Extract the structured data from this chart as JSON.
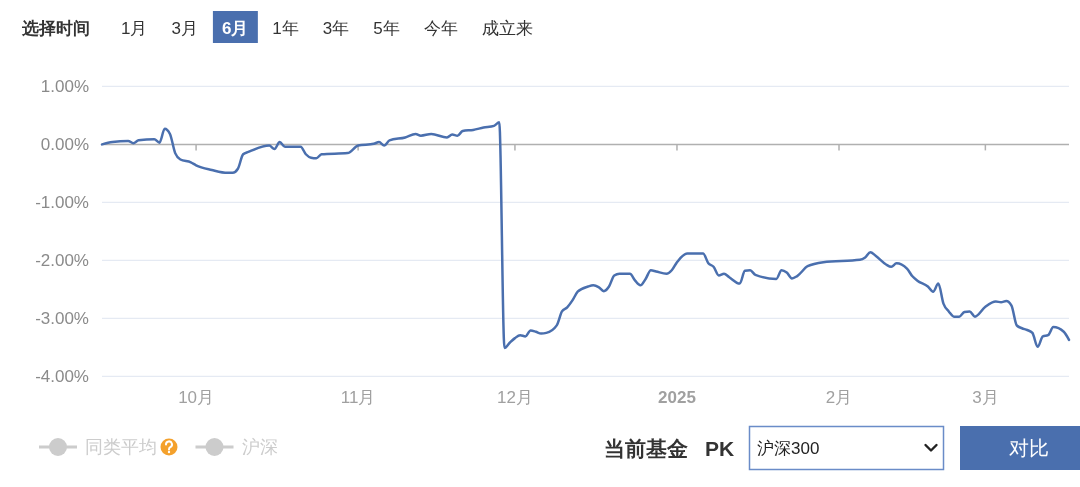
{
  "chart_data": {
    "type": "line",
    "x": [
      "2024-09-13",
      "2024-09-15",
      "2024-09-18",
      "2024-09-19",
      "2024-09-20",
      "2024-09-23",
      "2024-09-24",
      "2024-09-25",
      "2024-09-26",
      "2024-09-27",
      "2024-09-28",
      "2024-09-30",
      "2024-10-01",
      "2024-10-04",
      "2024-10-07",
      "2024-10-08",
      "2024-10-09",
      "2024-10-10",
      "2024-10-11",
      "2024-10-15",
      "2024-10-16",
      "2024-10-17",
      "2024-10-18",
      "2024-10-21",
      "2024-10-22",
      "2024-10-23",
      "2024-10-24",
      "2024-10-25",
      "2024-10-30",
      "2024-11-01",
      "2024-11-04",
      "2024-11-05",
      "2024-11-06",
      "2024-11-07",
      "2024-11-10",
      "2024-11-12",
      "2024-11-13",
      "2024-11-15",
      "2024-11-18",
      "2024-11-19",
      "2024-11-20",
      "2024-11-21",
      "2024-11-23",
      "2024-11-25",
      "2024-11-27",
      "2024-11-28",
      "2024-11-29",
      "2024-11-30",
      "2024-12-01",
      "2024-12-02",
      "2024-12-03",
      "2024-12-04",
      "2024-12-05",
      "2024-12-06",
      "2024-12-07",
      "2024-12-09",
      "2024-12-10",
      "2024-12-11",
      "2024-12-12",
      "2024-12-13",
      "2024-12-15",
      "2024-12-16",
      "2024-12-17",
      "2024-12-18",
      "2024-12-19",
      "2024-12-20",
      "2024-12-21",
      "2024-12-23",
      "2024-12-24",
      "2024-12-25",
      "2024-12-26",
      "2024-12-27",
      "2024-12-28",
      "2024-12-30",
      "2024-12-31",
      "2025-01-01",
      "2025-01-03",
      "2025-01-06",
      "2025-01-07",
      "2025-01-08",
      "2025-01-09",
      "2025-01-10",
      "2025-01-11",
      "2025-01-13",
      "2025-01-14",
      "2025-01-15",
      "2025-01-16",
      "2025-01-20",
      "2025-01-21",
      "2025-01-22",
      "2025-01-23",
      "2025-01-24",
      "2025-01-26",
      "2025-01-29",
      "2025-02-05",
      "2025-02-06",
      "2025-02-07",
      "2025-02-08",
      "2025-02-10",
      "2025-02-11",
      "2025-02-12",
      "2025-02-14",
      "2025-02-15",
      "2025-02-16",
      "2025-02-18",
      "2025-02-19",
      "2025-02-20",
      "2025-02-21",
      "2025-02-22",
      "2025-02-23",
      "2025-02-24",
      "2025-02-25",
      "2025-02-26",
      "2025-02-27",
      "2025-03-01",
      "2025-03-03",
      "2025-03-04",
      "2025-03-05",
      "2025-03-06",
      "2025-03-07",
      "2025-03-08",
      "2025-03-09",
      "2025-03-10",
      "2025-03-11",
      "2025-03-12",
      "2025-03-13",
      "2025-03-14",
      "2025-03-16",
      "2025-03-17"
    ],
    "series": [
      {
        "color": "#4a6fae",
        "values": [
          0.0,
          0.04,
          0.06,
          0.02,
          0.07,
          0.09,
          0.03,
          0.27,
          0.18,
          -0.15,
          -0.26,
          -0.31,
          -0.36,
          -0.44,
          -0.49,
          -0.49,
          -0.42,
          -0.17,
          -0.13,
          -0.02,
          -0.08,
          0.04,
          -0.04,
          -0.04,
          -0.17,
          -0.23,
          -0.24,
          -0.17,
          -0.15,
          -0.02,
          0.01,
          0.04,
          -0.02,
          0.07,
          0.12,
          0.18,
          0.15,
          0.18,
          0.12,
          0.17,
          0.15,
          0.23,
          0.25,
          0.29,
          0.32,
          0.38,
          -3.51,
          -3.42,
          -3.34,
          -3.29,
          -3.31,
          -3.21,
          -3.23,
          -3.26,
          -3.25,
          -3.12,
          -2.88,
          -2.81,
          -2.69,
          -2.54,
          -2.45,
          -2.43,
          -2.46,
          -2.53,
          -2.45,
          -2.26,
          -2.23,
          -2.23,
          -2.35,
          -2.43,
          -2.32,
          -2.17,
          -2.19,
          -2.23,
          -2.17,
          -2.03,
          -1.88,
          -1.88,
          -2.05,
          -2.11,
          -2.26,
          -2.23,
          -2.29,
          -2.4,
          -2.18,
          -2.17,
          -2.25,
          -2.32,
          -2.17,
          -2.21,
          -2.31,
          -2.27,
          -2.1,
          -2.03,
          -1.99,
          -1.95,
          -1.86,
          -1.92,
          -2.07,
          -2.11,
          -2.05,
          -2.14,
          -2.27,
          -2.35,
          -2.45,
          -2.54,
          -2.4,
          -2.75,
          -2.88,
          -2.97,
          -2.97,
          -2.89,
          -2.88,
          -2.97,
          -2.8,
          -2.71,
          -2.72,
          -2.7,
          -2.78,
          -3.12,
          -3.17,
          -3.2,
          -3.25,
          -3.49,
          -3.31,
          -3.29,
          -3.15,
          -3.23,
          -3.37
        ]
      },
      {
        "name": "同类平均",
        "color": "#cccccc",
        "values": [
          null,
          null,
          null,
          null,
          null,
          null,
          null,
          null,
          null,
          null,
          null,
          null,
          null,
          null,
          null,
          null,
          null,
          null,
          null,
          null,
          null,
          null,
          null,
          null,
          null,
          null,
          null,
          null,
          null,
          null,
          null,
          null,
          null,
          null,
          null,
          null,
          null,
          null,
          null,
          null,
          null,
          null,
          null,
          null,
          null,
          null,
          null,
          null,
          null,
          null,
          null,
          null,
          null,
          null,
          null,
          null,
          null,
          null,
          null,
          null,
          null,
          null,
          null,
          null,
          null,
          null,
          null,
          null,
          null,
          null,
          null,
          null,
          null,
          null,
          null,
          null,
          null,
          null,
          null,
          null,
          null,
          null,
          null,
          null,
          null,
          null,
          null,
          null,
          null,
          null,
          null,
          null,
          null,
          null,
          null,
          null,
          null,
          null,
          null,
          null,
          null,
          null,
          null,
          null,
          null,
          null,
          null,
          null,
          null,
          null,
          null,
          null,
          null,
          null,
          null,
          null,
          null,
          null,
          null,
          null,
          null,
          null,
          null,
          null,
          null,
          null,
          null,
          null,
          null
        ]
      },
      {
        "name": "沪深",
        "color": "#cccccc",
        "values": [
          null,
          null,
          null,
          null,
          null,
          null,
          null,
          null,
          null,
          null,
          null,
          null,
          null,
          null,
          null,
          null,
          null,
          null,
          null,
          null,
          null,
          null,
          null,
          null,
          null,
          null,
          null,
          null,
          null,
          null,
          null,
          null,
          null,
          null,
          null,
          null,
          null,
          null,
          null,
          null,
          null,
          null,
          null,
          null,
          null,
          null,
          null,
          null,
          null,
          null,
          null,
          null,
          null,
          null,
          null,
          null,
          null,
          null,
          null,
          null,
          null,
          null,
          null,
          null,
          null,
          null,
          null,
          null,
          null,
          null,
          null,
          null,
          null,
          null,
          null,
          null,
          null,
          null,
          null,
          null,
          null,
          null,
          null,
          null,
          null,
          null,
          null,
          null,
          null,
          null,
          null,
          null,
          null,
          null,
          null,
          null,
          null,
          null,
          null,
          null,
          null,
          null,
          null,
          null,
          null,
          null,
          null,
          null,
          null,
          null,
          null,
          null,
          null,
          null,
          null,
          null,
          null,
          null,
          null,
          null,
          null,
          null,
          null,
          null,
          null,
          null,
          null,
          null,
          null
        ]
      }
    ],
    "xlim": [
      "2024-09-13",
      "2025-03-17"
    ],
    "xticks": [
      {
        "value": "2024-10-01",
        "label": "10月"
      },
      {
        "value": "2024-11-01",
        "label": "11月"
      },
      {
        "value": "2024-12-01",
        "label": "12月"
      },
      {
        "value": "2025-01-01",
        "label": "2025"
      },
      {
        "value": "2025-02-01",
        "label": "2月"
      },
      {
        "value": "2025-03-01",
        "label": "3月"
      }
    ],
    "ylim": [
      -4,
      1
    ],
    "yticks": [
      {
        "value": 1,
        "label": "1.00%"
      },
      {
        "value": 0,
        "label": "0.00%"
      },
      {
        "value": -1,
        "label": "-1.00%"
      },
      {
        "value": -2,
        "label": "-2.00%"
      },
      {
        "value": -3,
        "label": "-3.00%"
      },
      {
        "value": -4,
        "label": "-4.00%"
      }
    ],
    "grid": "y",
    "legend": "bottom left",
    "annotations": [
      "选择时间",
      "1月",
      "3月",
      "6月",
      "1年",
      "3年",
      "5年",
      "今年",
      "成立来",
      "当前基金",
      "PK",
      "沪深300",
      "对比"
    ]
  }
}
